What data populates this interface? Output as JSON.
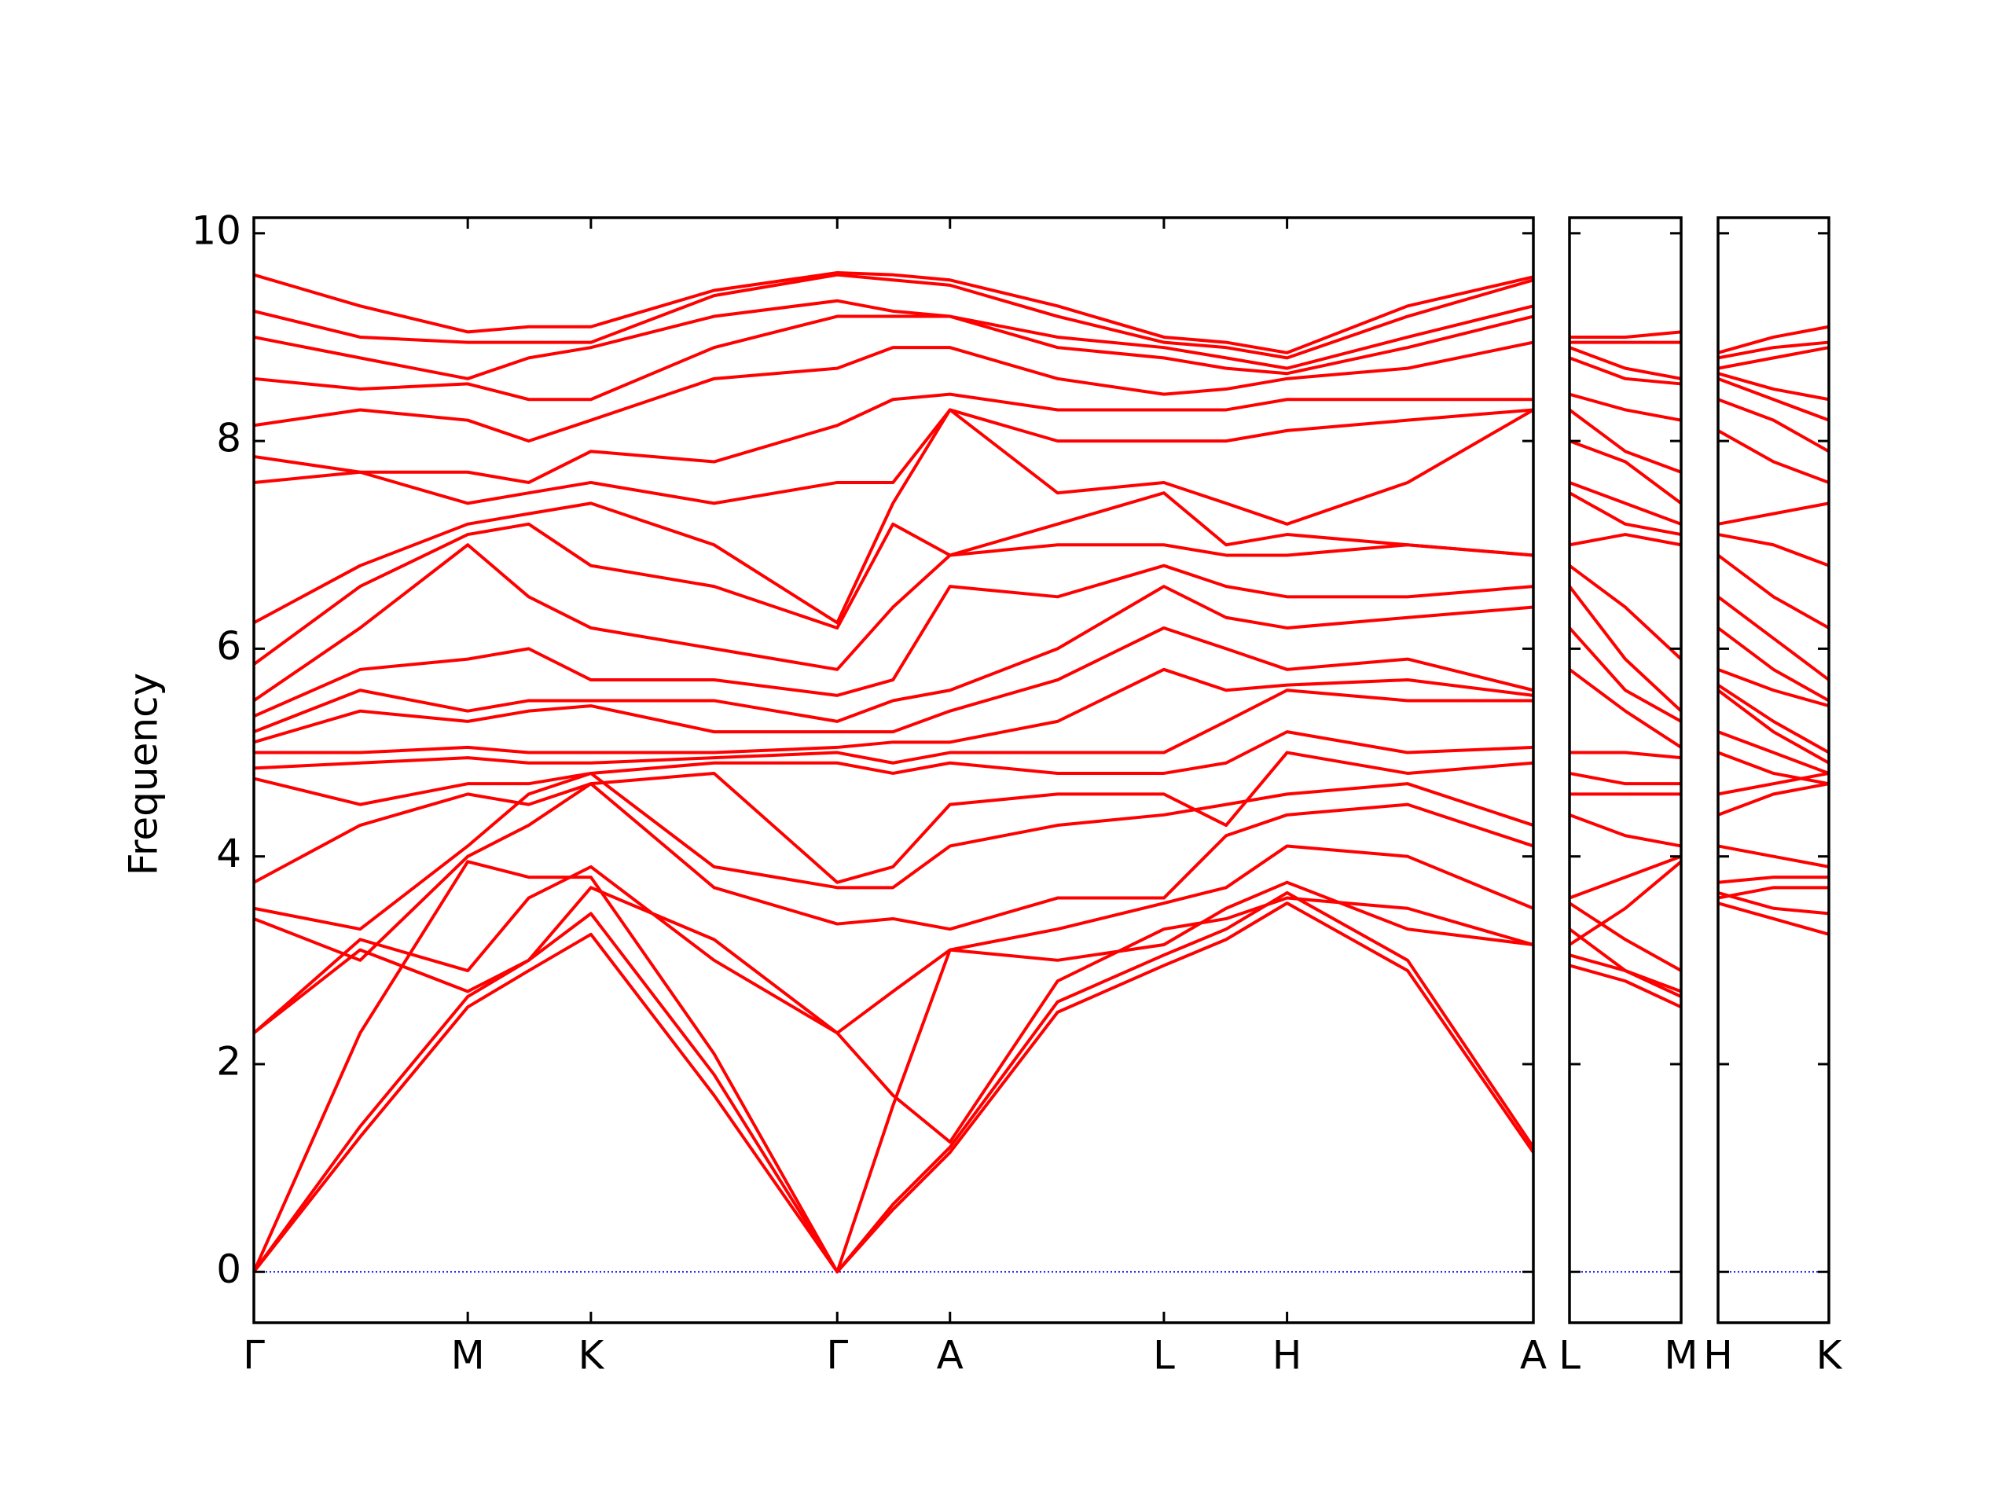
{
  "chart_data": [
    {
      "type": "line",
      "y_label": "Frequency",
      "color": "#ff0000",
      "zero_line_color": "#0000ff",
      "x": [
        0,
        0.82,
        1.65,
        2.12,
        2.6,
        3.55,
        4.5,
        4.93,
        5.37,
        6.2,
        7.02,
        7.5,
        7.97,
        8.9,
        9.87
      ],
      "xlim": [
        0,
        9.87
      ],
      "xticks": [
        {
          "value": 0,
          "label": "Γ"
        },
        {
          "value": 1.65,
          "label": "M"
        },
        {
          "value": 2.6,
          "label": "K"
        },
        {
          "value": 4.5,
          "label": "Γ"
        },
        {
          "value": 5.37,
          "label": "A"
        },
        {
          "value": 7.02,
          "label": "L"
        },
        {
          "value": 7.97,
          "label": "H"
        },
        {
          "value": 9.87,
          "label": "A"
        }
      ],
      "ylim": [
        -0.49,
        10.15
      ],
      "yticks": [
        0,
        2,
        4,
        6,
        8,
        10
      ],
      "series": [
        {
          "values": [
            0,
            1.3,
            2.55,
            2.9,
            3.25,
            1.7,
            0,
            0.6,
            1.15,
            2.5,
            2.95,
            3.2,
            3.55,
            2.9,
            1.15
          ]
        },
        {
          "values": [
            0,
            1.4,
            2.65,
            3.0,
            3.45,
            1.9,
            0,
            0.65,
            1.2,
            2.6,
            3.05,
            3.3,
            3.65,
            3.0,
            1.2
          ]
        },
        {
          "values": [
            0,
            2.3,
            3.95,
            3.8,
            3.8,
            2.1,
            0,
            1.6,
            3.1,
            3.0,
            3.15,
            3.5,
            3.75,
            3.3,
            3.15
          ]
        },
        {
          "values": [
            2.3,
            3.1,
            2.7,
            3.0,
            3.7,
            3.2,
            2.3,
            1.7,
            1.25,
            2.8,
            3.3,
            3.4,
            3.6,
            3.5,
            3.15
          ]
        },
        {
          "values": [
            2.3,
            3.2,
            2.9,
            3.6,
            3.9,
            3.0,
            2.3,
            2.7,
            3.1,
            3.3,
            3.55,
            3.7,
            4.1,
            4.0,
            3.5
          ]
        },
        {
          "values": [
            3.4,
            3.0,
            4.0,
            4.3,
            4.7,
            3.7,
            3.35,
            3.4,
            3.3,
            3.6,
            3.6,
            4.2,
            4.4,
            4.5,
            4.1
          ]
        },
        {
          "values": [
            3.5,
            3.3,
            4.1,
            4.6,
            4.8,
            3.9,
            3.7,
            3.7,
            4.1,
            4.3,
            4.4,
            4.5,
            4.6,
            4.7,
            4.3
          ]
        },
        {
          "values": [
            3.75,
            4.3,
            4.6,
            4.5,
            4.7,
            4.8,
            3.75,
            3.9,
            4.5,
            4.6,
            4.6,
            4.3,
            5.0,
            4.8,
            4.9
          ]
        },
        {
          "values": [
            4.75,
            4.5,
            4.7,
            4.7,
            4.8,
            4.9,
            4.9,
            4.8,
            4.9,
            4.8,
            4.8,
            4.9,
            5.2,
            5.0,
            5.05
          ]
        },
        {
          "values": [
            4.85,
            4.9,
            4.95,
            4.9,
            4.9,
            4.95,
            5.0,
            4.9,
            5.0,
            5.0,
            5.0,
            5.3,
            5.6,
            5.5,
            5.5
          ]
        },
        {
          "values": [
            5.0,
            5.0,
            5.05,
            5.0,
            5.0,
            5.0,
            5.05,
            5.1,
            5.1,
            5.3,
            5.8,
            5.6,
            5.65,
            5.7,
            5.55
          ]
        },
        {
          "values": [
            5.1,
            5.4,
            5.3,
            5.4,
            5.45,
            5.2,
            5.2,
            5.2,
            5.4,
            5.7,
            6.2,
            6.0,
            5.8,
            5.9,
            5.6
          ]
        },
        {
          "values": [
            5.2,
            5.6,
            5.4,
            5.5,
            5.5,
            5.5,
            5.3,
            5.5,
            5.6,
            6.0,
            6.6,
            6.3,
            6.2,
            6.3,
            6.4
          ]
        },
        {
          "values": [
            5.35,
            5.8,
            5.9,
            6.0,
            5.7,
            5.7,
            5.55,
            5.7,
            6.6,
            6.5,
            6.8,
            6.6,
            6.5,
            6.5,
            6.6
          ]
        },
        {
          "values": [
            5.5,
            6.2,
            7.0,
            6.5,
            6.2,
            6.0,
            5.8,
            6.4,
            6.9,
            7.0,
            7.0,
            6.9,
            6.9,
            7.0,
            6.9
          ]
        },
        {
          "values": [
            5.85,
            6.6,
            7.1,
            7.2,
            6.8,
            6.6,
            6.2,
            7.2,
            6.9,
            7.2,
            7.5,
            7.0,
            7.1,
            7.0,
            6.9
          ]
        },
        {
          "values": [
            6.25,
            6.8,
            7.2,
            7.3,
            7.4,
            7.0,
            6.25,
            7.4,
            8.3,
            7.5,
            7.6,
            7.4,
            7.2,
            7.6,
            8.3
          ]
        },
        {
          "values": [
            7.6,
            7.7,
            7.4,
            7.5,
            7.6,
            7.4,
            7.6,
            7.6,
            8.3,
            8.0,
            8.0,
            8.0,
            8.1,
            8.2,
            8.3
          ]
        },
        {
          "values": [
            7.85,
            7.7,
            7.7,
            7.6,
            7.9,
            7.8,
            8.15,
            8.4,
            8.45,
            8.3,
            8.3,
            8.3,
            8.4,
            8.4,
            8.4
          ]
        },
        {
          "values": [
            8.15,
            8.3,
            8.2,
            8.0,
            8.2,
            8.6,
            8.7,
            8.9,
            8.9,
            8.6,
            8.45,
            8.5,
            8.6,
            8.7,
            8.95
          ]
        },
        {
          "values": [
            8.6,
            8.5,
            8.55,
            8.4,
            8.4,
            8.9,
            9.2,
            9.2,
            9.2,
            8.9,
            8.8,
            8.7,
            8.65,
            8.9,
            9.2
          ]
        },
        {
          "values": [
            9.0,
            8.8,
            8.6,
            8.8,
            8.9,
            9.2,
            9.35,
            9.25,
            9.2,
            9.0,
            8.9,
            8.8,
            8.7,
            9.0,
            9.3
          ]
        },
        {
          "values": [
            9.25,
            9.0,
            8.95,
            8.95,
            8.95,
            9.4,
            9.6,
            9.55,
            9.5,
            9.2,
            8.95,
            8.9,
            8.8,
            9.2,
            9.55
          ]
        },
        {
          "values": [
            9.6,
            9.3,
            9.05,
            9.1,
            9.1,
            9.45,
            9.62,
            9.6,
            9.55,
            9.3,
            9.0,
            8.95,
            8.85,
            9.3,
            9.58
          ]
        }
      ]
    },
    {
      "type": "line",
      "color": "#ff0000",
      "zero_line_color": "#0000ff",
      "x": [
        0,
        0.43,
        0.86
      ],
      "xlim": [
        0,
        0.86
      ],
      "xticks": [
        {
          "value": 0,
          "label": "L"
        },
        {
          "value": 0.86,
          "label": "M"
        }
      ],
      "ylim": [
        -0.49,
        10.15
      ],
      "series": [
        {
          "values": [
            2.95,
            2.8,
            2.55
          ]
        },
        {
          "values": [
            3.05,
            2.9,
            2.65
          ]
        },
        {
          "values": [
            3.15,
            3.5,
            3.95
          ]
        },
        {
          "values": [
            3.3,
            2.9,
            2.7
          ]
        },
        {
          "values": [
            3.55,
            3.2,
            2.9
          ]
        },
        {
          "values": [
            3.6,
            3.8,
            4.0
          ]
        },
        {
          "values": [
            4.4,
            4.2,
            4.1
          ]
        },
        {
          "values": [
            4.6,
            4.6,
            4.6
          ]
        },
        {
          "values": [
            4.8,
            4.7,
            4.7
          ]
        },
        {
          "values": [
            5.0,
            5.0,
            4.95
          ]
        },
        {
          "values": [
            5.8,
            5.4,
            5.05
          ]
        },
        {
          "values": [
            6.2,
            5.6,
            5.3
          ]
        },
        {
          "values": [
            6.6,
            5.9,
            5.4
          ]
        },
        {
          "values": [
            6.8,
            6.4,
            5.9
          ]
        },
        {
          "values": [
            7.0,
            7.1,
            7.0
          ]
        },
        {
          "values": [
            7.5,
            7.2,
            7.1
          ]
        },
        {
          "values": [
            7.6,
            7.4,
            7.2
          ]
        },
        {
          "values": [
            8.0,
            7.8,
            7.4
          ]
        },
        {
          "values": [
            8.3,
            7.9,
            7.7
          ]
        },
        {
          "values": [
            8.45,
            8.3,
            8.2
          ]
        },
        {
          "values": [
            8.8,
            8.6,
            8.55
          ]
        },
        {
          "values": [
            8.9,
            8.7,
            8.6
          ]
        },
        {
          "values": [
            8.95,
            8.95,
            8.95
          ]
        },
        {
          "values": [
            9.0,
            9.0,
            9.05
          ]
        }
      ]
    },
    {
      "type": "line",
      "color": "#ff0000",
      "zero_line_color": "#0000ff",
      "x": [
        0,
        0.43,
        0.86
      ],
      "xlim": [
        0,
        0.86
      ],
      "xticks": [
        {
          "value": 0,
          "label": "H"
        },
        {
          "value": 0.86,
          "label": "K"
        }
      ],
      "ylim": [
        -0.49,
        10.15
      ],
      "series": [
        {
          "values": [
            3.55,
            3.4,
            3.25
          ]
        },
        {
          "values": [
            3.65,
            3.5,
            3.45
          ]
        },
        {
          "values": [
            3.75,
            3.8,
            3.8
          ]
        },
        {
          "values": [
            3.6,
            3.7,
            3.7
          ]
        },
        {
          "values": [
            4.1,
            4.0,
            3.9
          ]
        },
        {
          "values": [
            4.4,
            4.6,
            4.7
          ]
        },
        {
          "values": [
            4.6,
            4.7,
            4.8
          ]
        },
        {
          "values": [
            5.0,
            4.8,
            4.7
          ]
        },
        {
          "values": [
            5.2,
            5.0,
            4.8
          ]
        },
        {
          "values": [
            5.6,
            5.2,
            4.9
          ]
        },
        {
          "values": [
            5.65,
            5.3,
            5.0
          ]
        },
        {
          "values": [
            5.8,
            5.6,
            5.45
          ]
        },
        {
          "values": [
            6.2,
            5.8,
            5.5
          ]
        },
        {
          "values": [
            6.5,
            6.1,
            5.7
          ]
        },
        {
          "values": [
            6.9,
            6.5,
            6.2
          ]
        },
        {
          "values": [
            7.1,
            7.0,
            6.8
          ]
        },
        {
          "values": [
            7.2,
            7.3,
            7.4
          ]
        },
        {
          "values": [
            8.1,
            7.8,
            7.6
          ]
        },
        {
          "values": [
            8.4,
            8.2,
            7.9
          ]
        },
        {
          "values": [
            8.6,
            8.4,
            8.2
          ]
        },
        {
          "values": [
            8.65,
            8.5,
            8.4
          ]
        },
        {
          "values": [
            8.7,
            8.8,
            8.9
          ]
        },
        {
          "values": [
            8.8,
            8.9,
            8.95
          ]
        },
        {
          "values": [
            8.85,
            9.0,
            9.1
          ]
        }
      ]
    }
  ]
}
